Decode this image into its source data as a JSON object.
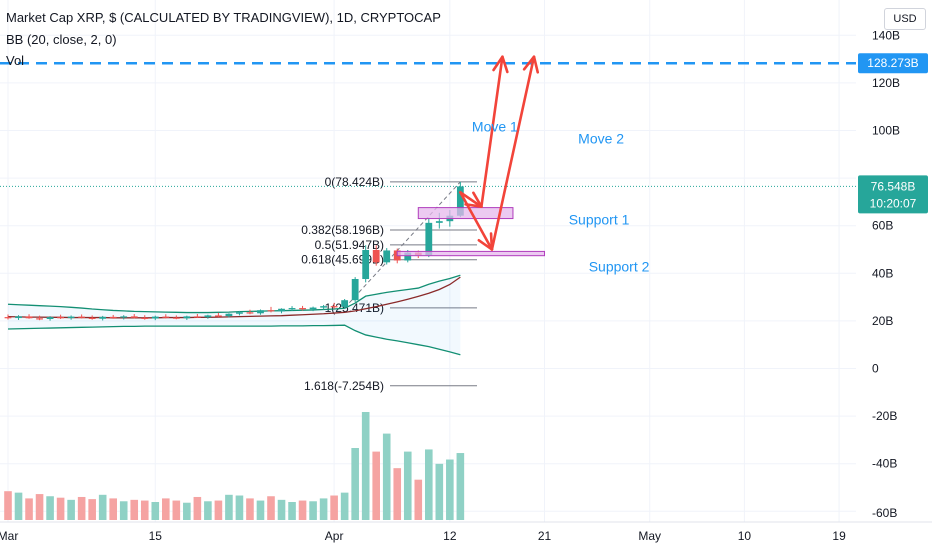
{
  "legend": {
    "title": "Market Cap XRP, $ (CALCULATED BY TRADINGVIEW), 1D, CRYPTOCAP",
    "bb": "BB (20, close, 2, 0)",
    "vol": "Vol"
  },
  "currency_label": "USD",
  "y_axis": {
    "ticks": [
      {
        "value": 120,
        "label": "120B"
      },
      {
        "value": 100,
        "label": "100B"
      },
      {
        "value": 60,
        "label": "60B"
      },
      {
        "value": 40,
        "label": "40B"
      },
      {
        "value": 20,
        "label": "20B"
      },
      {
        "value": 0,
        "label": "0"
      },
      {
        "value": -20,
        "label": "-20B"
      },
      {
        "value": -40,
        "label": "-40B"
      }
    ],
    "partial_top_label": "140B",
    "partial_bottom_label": "-60B"
  },
  "x_axis": {
    "ticks": [
      {
        "day": 0,
        "label": "Mar"
      },
      {
        "day": 14,
        "label": "15"
      },
      {
        "day": 31,
        "label": "Apr"
      },
      {
        "day": 42,
        "label": "12"
      },
      {
        "day": 51,
        "label": "21"
      },
      {
        "day": 61,
        "label": "May"
      },
      {
        "day": 70,
        "label": "10"
      },
      {
        "day": 79,
        "label": "19"
      }
    ]
  },
  "price_labels": {
    "target": {
      "value": 128.273,
      "label": "128.273B",
      "color": "#2196f3"
    },
    "current": {
      "value": 76.548,
      "label": "76.548B",
      "countdown": "10:20:07",
      "color": "#26a69a"
    }
  },
  "fib_levels": [
    {
      "value": 78.424,
      "label": "0(78.424B)"
    },
    {
      "value": 58.196,
      "label": "0.382(58.196B)"
    },
    {
      "value": 51.947,
      "label": "0.5(51.947B)"
    },
    {
      "value": 45.699,
      "label": "0.618(45.699B)"
    },
    {
      "value": 25.471,
      "label": "1(25.471B)"
    },
    {
      "value": -7.254,
      "label": "1.618(-7.254B)"
    }
  ],
  "annotations": {
    "move1": "Move 1",
    "move2": "Move 2",
    "support1": "Support 1",
    "support2": "Support 2"
  },
  "colors": {
    "up": "#26a69a",
    "down": "#ef5350",
    "vol_up": "#8fd1c5",
    "vol_down": "#f5a3a2",
    "bb_band": "#138f73",
    "bb_basis": "#8a2a2a",
    "arrows": "#f2443a",
    "support_fill": "#e6b8ec",
    "support_stroke": "#b03dbd",
    "annotation_text": "#2196f3"
  },
  "chart_data": {
    "type": "candlestick",
    "value_unit": "B USD",
    "candles": [
      {
        "o": 21.6,
        "h": 22.7,
        "l": 20.6,
        "c": 21.2
      },
      {
        "o": 21.2,
        "h": 22.4,
        "l": 20.4,
        "c": 21.9
      },
      {
        "o": 21.9,
        "h": 22.8,
        "l": 20.9,
        "c": 21.1
      },
      {
        "o": 21.1,
        "h": 22.2,
        "l": 20.3,
        "c": 20.8
      },
      {
        "o": 20.8,
        "h": 22.0,
        "l": 20.1,
        "c": 21.6
      },
      {
        "o": 21.6,
        "h": 22.6,
        "l": 20.8,
        "c": 21.2
      },
      {
        "o": 21.2,
        "h": 22.3,
        "l": 20.5,
        "c": 21.8
      },
      {
        "o": 21.8,
        "h": 22.7,
        "l": 21.0,
        "c": 21.3
      },
      {
        "o": 21.3,
        "h": 22.3,
        "l": 20.5,
        "c": 20.9
      },
      {
        "o": 20.9,
        "h": 22.1,
        "l": 20.2,
        "c": 21.7
      },
      {
        "o": 21.7,
        "h": 22.5,
        "l": 20.9,
        "c": 21.4
      },
      {
        "o": 21.4,
        "h": 22.4,
        "l": 20.6,
        "c": 21.9
      },
      {
        "o": 21.9,
        "h": 22.9,
        "l": 21.1,
        "c": 21.3
      },
      {
        "o": 21.3,
        "h": 22.4,
        "l": 20.5,
        "c": 21.0
      },
      {
        "o": 21.0,
        "h": 22.2,
        "l": 20.3,
        "c": 21.8
      },
      {
        "o": 21.8,
        "h": 22.8,
        "l": 21.0,
        "c": 21.4
      },
      {
        "o": 21.4,
        "h": 22.3,
        "l": 20.7,
        "c": 21.1
      },
      {
        "o": 21.1,
        "h": 22.2,
        "l": 20.4,
        "c": 21.9
      },
      {
        "o": 21.9,
        "h": 22.9,
        "l": 21.2,
        "c": 21.5
      },
      {
        "o": 21.5,
        "h": 22.6,
        "l": 20.9,
        "c": 22.3
      },
      {
        "o": 22.3,
        "h": 23.4,
        "l": 21.6,
        "c": 22.0
      },
      {
        "o": 22.0,
        "h": 23.2,
        "l": 21.4,
        "c": 23.0
      },
      {
        "o": 23.0,
        "h": 24.2,
        "l": 22.3,
        "c": 23.6
      },
      {
        "o": 23.6,
        "h": 24.7,
        "l": 22.8,
        "c": 23.2
      },
      {
        "o": 23.2,
        "h": 24.8,
        "l": 22.6,
        "c": 24.5
      },
      {
        "o": 24.5,
        "h": 25.9,
        "l": 23.6,
        "c": 24.0
      },
      {
        "o": 24.0,
        "h": 25.3,
        "l": 23.2,
        "c": 25.1
      },
      {
        "o": 25.1,
        "h": 26.2,
        "l": 24.2,
        "c": 25.4
      },
      {
        "o": 25.4,
        "h": 26.3,
        "l": 24.4,
        "c": 24.9
      },
      {
        "o": 24.9,
        "h": 26.0,
        "l": 24.1,
        "c": 25.6
      },
      {
        "o": 25.6,
        "h": 26.7,
        "l": 24.8,
        "c": 26.2
      },
      {
        "o": 26.2,
        "h": 27.6,
        "l": 25.1,
        "c": 25.9
      },
      {
        "o": 25.9,
        "h": 29.2,
        "l": 25.0,
        "c": 28.7
      },
      {
        "o": 28.7,
        "h": 38.4,
        "l": 27.9,
        "c": 37.6
      },
      {
        "o": 37.6,
        "h": 51.8,
        "l": 36.2,
        "c": 49.8
      },
      {
        "o": 49.8,
        "h": 51.8,
        "l": 43.2,
        "c": 44.6
      },
      {
        "o": 44.6,
        "h": 50.6,
        "l": 43.7,
        "c": 49.6
      },
      {
        "o": 49.6,
        "h": 50.4,
        "l": 44.2,
        "c": 45.4
      },
      {
        "o": 45.4,
        "h": 49.8,
        "l": 44.6,
        "c": 48.7
      },
      {
        "o": 48.7,
        "h": 49.6,
        "l": 46.4,
        "c": 47.6
      },
      {
        "o": 47.6,
        "h": 63.4,
        "l": 46.8,
        "c": 61.2
      },
      {
        "o": 61.2,
        "h": 65.4,
        "l": 58.8,
        "c": 61.9
      },
      {
        "o": 61.9,
        "h": 66.6,
        "l": 59.6,
        "c": 64.2
      },
      {
        "o": 64.2,
        "h": 78.4,
        "l": 63.6,
        "c": 76.5
      }
    ],
    "volume": [
      40,
      38,
      30,
      36,
      33,
      31,
      28,
      32,
      29,
      35,
      30,
      26,
      28,
      27,
      25,
      30,
      27,
      24,
      32,
      26,
      27,
      35,
      34,
      30,
      27,
      33,
      28,
      25,
      27,
      26,
      30,
      34,
      38,
      100,
      150,
      95,
      120,
      72,
      95,
      56,
      98,
      78,
      84,
      93
    ],
    "bollinger": {
      "upper": [
        27.0,
        26.8,
        26.6,
        26.4,
        26.2,
        26.0,
        25.7,
        25.4,
        25.0,
        24.7,
        24.4,
        24.2,
        24.0,
        23.9,
        23.8,
        23.7,
        23.6,
        23.5,
        23.5,
        23.5,
        23.6,
        23.7,
        23.9,
        24.0,
        24.1,
        24.2,
        24.3,
        24.4,
        24.5,
        24.6,
        24.8,
        25.0,
        25.3,
        27.5,
        30.4,
        31.2,
        32.0,
        32.6,
        33.2,
        33.8,
        35.4,
        36.7,
        37.8,
        39.2
      ],
      "basis": [
        21.8,
        21.7,
        21.6,
        21.6,
        21.5,
        21.5,
        21.4,
        21.4,
        21.4,
        21.4,
        21.3,
        21.3,
        21.3,
        21.3,
        21.3,
        21.4,
        21.4,
        21.4,
        21.5,
        21.5,
        21.6,
        21.7,
        21.8,
        21.9,
        22.0,
        22.1,
        22.2,
        22.4,
        22.6,
        22.8,
        23.0,
        23.3,
        23.6,
        24.2,
        25.1,
        26.0,
        27.0,
        28.0,
        29.1,
        30.3,
        31.6,
        33.2,
        35.3,
        38.4
      ],
      "lower": [
        16.6,
        16.7,
        16.8,
        16.9,
        17.0,
        17.1,
        17.2,
        17.3,
        17.4,
        17.5,
        17.6,
        17.7,
        17.7,
        17.8,
        17.8,
        17.8,
        17.8,
        17.8,
        17.8,
        17.8,
        17.8,
        17.8,
        17.8,
        17.8,
        17.8,
        17.8,
        17.9,
        17.9,
        17.9,
        18.0,
        18.0,
        18.1,
        18.2,
        15.9,
        14.1,
        13.2,
        12.3,
        11.6,
        10.8,
        10.0,
        9.2,
        8.1,
        7.0,
        5.8
      ]
    },
    "fibonacci": [
      78.424,
      58.196,
      51.947,
      45.699,
      25.471,
      -7.254
    ],
    "target_level": 128.273,
    "last_price": 76.548,
    "support_zones": [
      {
        "label": "Support 1",
        "from_day": 39,
        "to_day": 48,
        "low": 63.0,
        "high": 67.6
      },
      {
        "label": "Support 2",
        "from_day": 37,
        "to_day": 51,
        "low": 47.4,
        "high": 49.2
      }
    ],
    "projection": {
      "move1": [
        {
          "day": 43,
          "value": 74
        },
        {
          "day": 45,
          "value": 68
        },
        {
          "day": 47,
          "value": 131
        }
      ],
      "move2": [
        {
          "day": 43,
          "value": 74
        },
        {
          "day": 46,
          "value": 50
        },
        {
          "day": 50,
          "value": 131
        }
      ]
    },
    "ylim": [
      -60,
      145
    ]
  }
}
